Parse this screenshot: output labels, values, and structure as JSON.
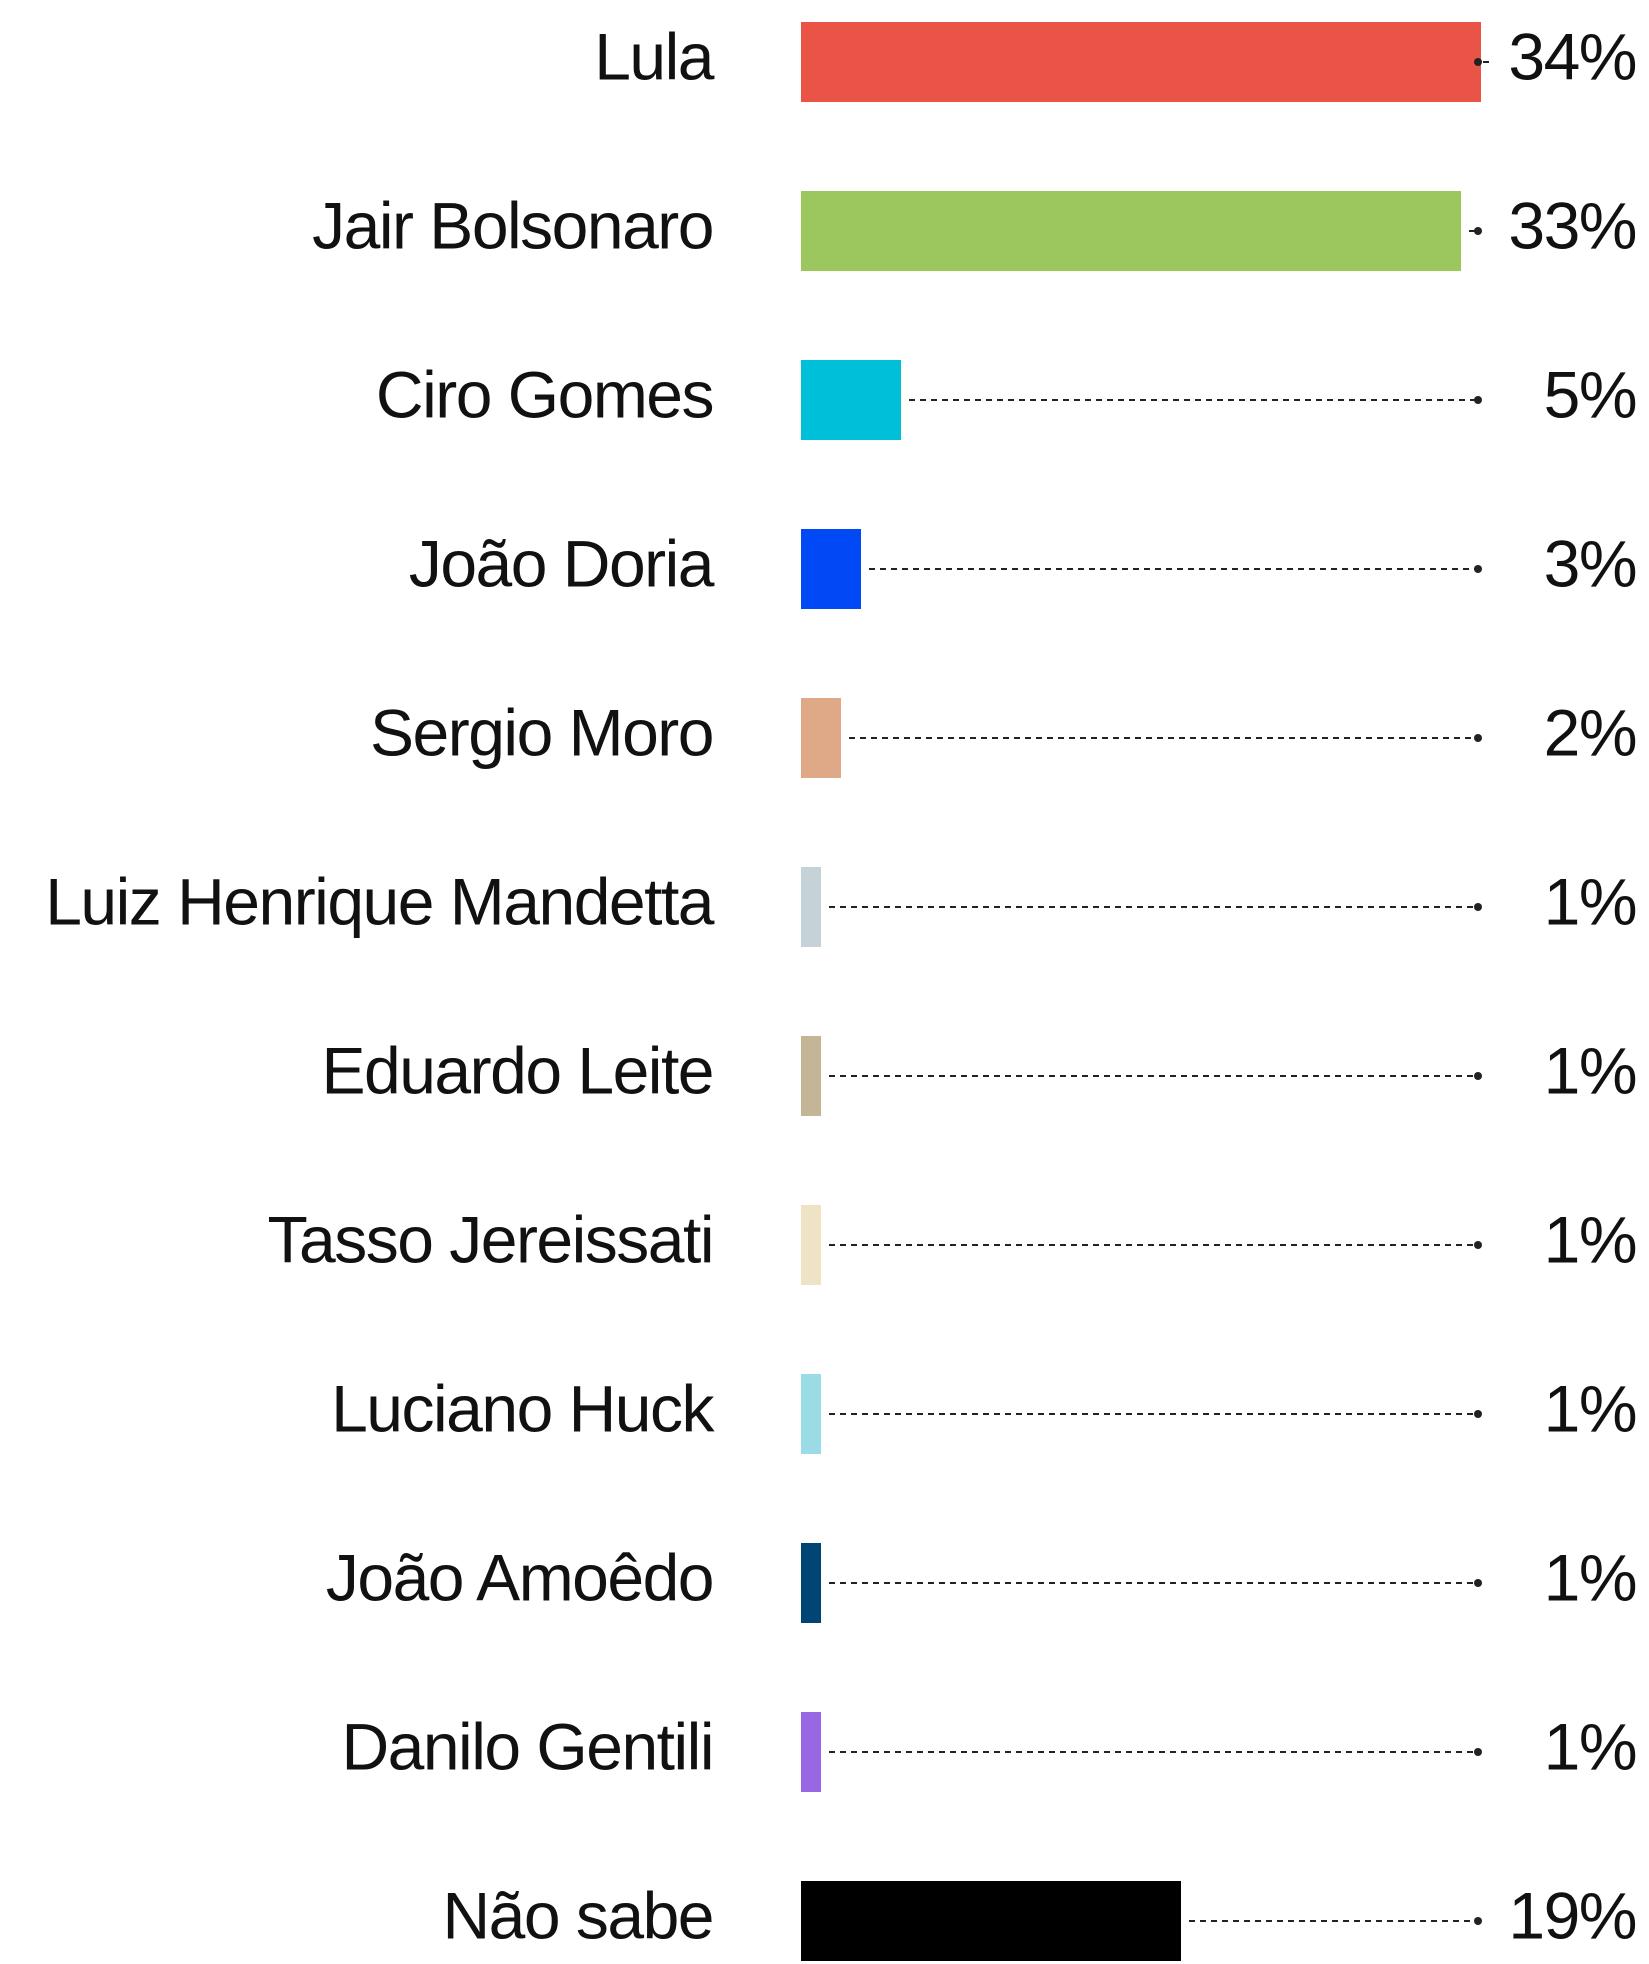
{
  "chart_data": {
    "type": "bar",
    "categories": [
      "Lula",
      "Jair Bolsonaro",
      "Ciro Gomes",
      "João Doria",
      "Sergio Moro",
      "Luiz Henrique Mandetta",
      "Eduardo Leite",
      "Tasso Jereissati",
      "Luciano Huck",
      "João Amoêdo",
      "Danilo Gentili",
      "Não sabe"
    ],
    "values": [
      34,
      33,
      5,
      3,
      2,
      1,
      1,
      1,
      1,
      1,
      1,
      19
    ],
    "value_labels": [
      "34%",
      "33%",
      "5%",
      "3%",
      "2%",
      "1%",
      "1%",
      "1%",
      "1%",
      "1%",
      "1%",
      "19%"
    ],
    "colors": [
      "#e95446",
      "#9bc75e",
      "#00bfd8",
      "#0049f5",
      "#dfa987",
      "#c5d2d8",
      "#c4b596",
      "#efe3c5",
      "#9bdbe6",
      "#004573",
      "#9867e3",
      "#000000"
    ]
  }
}
